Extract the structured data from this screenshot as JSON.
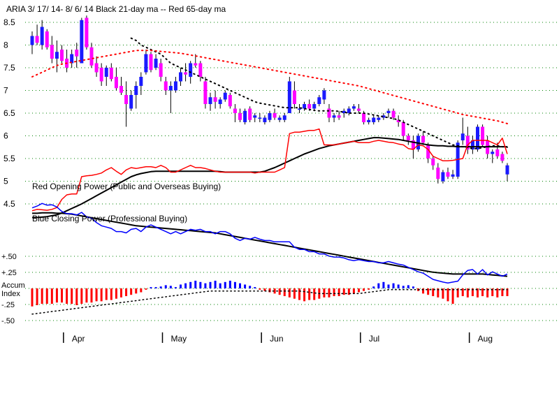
{
  "chart_data": {
    "type": "candlestick",
    "title": "ARIA   3/ 17/ 14-  8/ 6/ 14    Black 21-day ma  --  Red 65-day ma",
    "colors": {
      "up": "#1a1aff",
      "down": "#ff00ff",
      "ma21": "#000000",
      "ma65": "#ff0000",
      "opening_power": "#ff0000",
      "closing_power": "#0000ff",
      "accum_pos": "#0000ff",
      "accum_neg": "#ff0000",
      "grid": "#008000"
    },
    "price_axis": {
      "ticks": [
        "8.5",
        "8",
        "7.5",
        "7",
        "6.5",
        "6",
        "5.5",
        "5",
        "4.5"
      ],
      "min": 4.5,
      "max": 8.5,
      "grid": true
    },
    "month_labels": [
      "Apr",
      "May",
      "Jun",
      "Jul",
      "Aug"
    ],
    "month_start_index": [
      10,
      30,
      50,
      70,
      92
    ],
    "annotations": [
      "Red Opening Power (Public and Overseas Buying)",
      "Blue Closing Power (Professional Buying)"
    ],
    "accum": {
      "label_line1": "Accum",
      "label_line2": "Index",
      "ticks": [
        "+.50",
        "+.25",
        "-.25",
        "-.50"
      ]
    },
    "ohlc": [
      [
        8.0,
        8.3,
        7.8,
        8.2
      ],
      [
        8.2,
        8.45,
        8.0,
        8.05
      ],
      [
        8.0,
        8.55,
        7.9,
        8.4
      ],
      [
        8.3,
        8.35,
        7.9,
        7.95
      ],
      [
        8.0,
        8.2,
        7.6,
        7.7
      ],
      [
        7.7,
        8.1,
        7.4,
        7.85
      ],
      [
        7.9,
        8.0,
        7.6,
        7.65
      ],
      [
        7.7,
        7.9,
        7.4,
        7.5
      ],
      [
        7.6,
        7.9,
        7.5,
        7.8
      ],
      [
        7.9,
        8.05,
        7.5,
        7.75
      ],
      [
        7.6,
        8.6,
        7.6,
        8.55
      ],
      [
        8.6,
        8.65,
        7.9,
        7.95
      ],
      [
        7.95,
        8.05,
        7.5,
        7.55
      ],
      [
        7.6,
        7.75,
        7.3,
        7.4
      ],
      [
        7.5,
        7.6,
        7.1,
        7.2
      ],
      [
        7.3,
        7.55,
        7.1,
        7.5
      ],
      [
        7.5,
        7.6,
        7.2,
        7.25
      ],
      [
        7.3,
        7.5,
        7.0,
        7.05
      ],
      [
        7.1,
        7.3,
        6.9,
        6.95
      ],
      [
        6.9,
        7.2,
        6.2,
        6.7
      ],
      [
        6.6,
        7.0,
        6.55,
        6.9
      ],
      [
        6.9,
        7.2,
        6.6,
        7.1
      ],
      [
        7.1,
        7.4,
        6.9,
        7.3
      ],
      [
        7.4,
        7.9,
        7.35,
        7.8
      ],
      [
        7.8,
        7.85,
        7.4,
        7.45
      ],
      [
        7.5,
        7.8,
        7.45,
        7.7
      ],
      [
        7.6,
        7.7,
        7.2,
        7.3
      ],
      [
        7.2,
        7.3,
        6.9,
        7.0
      ],
      [
        7.0,
        7.2,
        6.5,
        7.1
      ],
      [
        7.0,
        7.3,
        6.95,
        7.2
      ],
      [
        7.2,
        7.5,
        7.1,
        7.4
      ],
      [
        7.4,
        7.6,
        7.2,
        7.35
      ],
      [
        7.3,
        7.65,
        7.15,
        7.6
      ],
      [
        7.6,
        7.8,
        7.5,
        7.55
      ],
      [
        7.6,
        7.65,
        7.2,
        7.3
      ],
      [
        7.2,
        7.3,
        6.6,
        6.7
      ],
      [
        6.7,
        6.95,
        6.55,
        6.85
      ],
      [
        6.85,
        7.0,
        6.6,
        6.75
      ],
      [
        6.7,
        6.85,
        6.6,
        6.8
      ],
      [
        6.8,
        7.0,
        6.75,
        6.95
      ],
      [
        6.9,
        6.95,
        6.6,
        6.65
      ],
      [
        6.6,
        6.7,
        6.3,
        6.5
      ],
      [
        6.5,
        6.6,
        6.3,
        6.35
      ],
      [
        6.3,
        6.6,
        6.25,
        6.55
      ],
      [
        6.6,
        6.65,
        6.3,
        6.35
      ],
      [
        6.4,
        6.5,
        6.3,
        6.45
      ],
      [
        6.4,
        6.5,
        6.3,
        6.4
      ],
      [
        6.3,
        6.45,
        6.25,
        6.4
      ],
      [
        6.35,
        6.55,
        6.3,
        6.5
      ],
      [
        6.5,
        6.6,
        6.35,
        6.4
      ],
      [
        6.35,
        6.45,
        6.3,
        6.4
      ],
      [
        6.35,
        6.5,
        6.3,
        6.45
      ],
      [
        6.5,
        7.3,
        6.5,
        7.2
      ],
      [
        7.0,
        7.2,
        6.6,
        6.7
      ],
      [
        6.6,
        6.7,
        6.5,
        6.6
      ],
      [
        6.6,
        6.75,
        6.55,
        6.7
      ],
      [
        6.7,
        6.8,
        6.55,
        6.6
      ],
      [
        6.6,
        6.75,
        6.55,
        6.7
      ],
      [
        6.7,
        6.9,
        6.65,
        6.85
      ],
      [
        6.8,
        7.05,
        6.7,
        7.0
      ],
      [
        6.6,
        6.7,
        6.3,
        6.4
      ],
      [
        6.4,
        6.5,
        6.3,
        6.45
      ],
      [
        6.45,
        6.55,
        6.35,
        6.4
      ],
      [
        6.5,
        6.6,
        6.4,
        6.55
      ],
      [
        6.5,
        6.65,
        6.45,
        6.6
      ],
      [
        6.6,
        6.7,
        6.55,
        6.65
      ],
      [
        6.6,
        6.7,
        6.5,
        6.55
      ],
      [
        6.5,
        6.55,
        6.25,
        6.3
      ],
      [
        6.3,
        6.4,
        6.25,
        6.35
      ],
      [
        6.3,
        6.45,
        6.25,
        6.4
      ],
      [
        6.35,
        6.45,
        6.3,
        6.4
      ],
      [
        6.4,
        6.5,
        6.35,
        6.45
      ],
      [
        6.5,
        6.6,
        6.4,
        6.55
      ],
      [
        6.55,
        6.6,
        6.35,
        6.4
      ],
      [
        6.35,
        6.45,
        6.2,
        6.3
      ],
      [
        6.3,
        6.35,
        5.9,
        6.0
      ],
      [
        6.0,
        6.05,
        5.8,
        5.9
      ],
      [
        5.9,
        6.0,
        5.5,
        5.7
      ],
      [
        5.7,
        6.05,
        5.65,
        6.0
      ],
      [
        6.0,
        6.1,
        5.8,
        5.85
      ],
      [
        5.8,
        5.85,
        5.4,
        5.5
      ],
      [
        5.5,
        5.55,
        5.25,
        5.35
      ],
      [
        5.3,
        5.4,
        4.95,
        5.05
      ],
      [
        5.0,
        5.25,
        4.95,
        5.2
      ],
      [
        5.2,
        5.3,
        5.05,
        5.1
      ],
      [
        5.1,
        5.25,
        5.05,
        5.15
      ],
      [
        5.1,
        5.9,
        5.05,
        5.85
      ],
      [
        5.9,
        6.4,
        5.8,
        6.05
      ],
      [
        6.0,
        6.2,
        5.6,
        5.7
      ],
      [
        5.7,
        6.0,
        5.6,
        5.9
      ],
      [
        5.7,
        6.25,
        5.65,
        6.2
      ],
      [
        6.2,
        6.25,
        5.75,
        5.8
      ],
      [
        5.9,
        6.0,
        5.5,
        5.6
      ],
      [
        5.6,
        5.7,
        5.4,
        5.65
      ],
      [
        5.7,
        5.85,
        5.5,
        5.55
      ],
      [
        5.6,
        5.65,
        5.4,
        5.45
      ],
      [
        5.15,
        5.4,
        5.0,
        5.35
      ]
    ],
    "ma21": [
      null,
      null,
      null,
      null,
      null,
      null,
      null,
      null,
      null,
      null,
      null,
      null,
      null,
      null,
      null,
      null,
      null,
      null,
      null,
      null,
      8.15,
      8.1,
      8.0,
      7.95,
      7.9,
      7.85,
      7.8,
      7.7,
      7.6,
      7.55,
      7.5,
      7.45,
      7.4,
      7.35,
      7.3,
      7.25,
      7.2,
      7.15,
      7.1,
      7.05,
      7.0,
      6.95,
      6.9,
      6.85,
      6.8,
      6.75,
      6.72,
      6.7,
      6.68,
      6.66,
      6.64,
      6.62,
      6.62,
      6.62,
      6.62,
      6.6,
      6.58,
      6.56,
      6.55,
      6.55,
      6.55,
      6.55,
      6.54,
      6.52,
      6.5,
      6.5,
      6.5,
      6.5,
      6.48,
      6.46,
      6.44,
      6.42,
      6.4,
      6.38,
      6.35,
      6.3,
      6.25,
      6.2,
      6.15,
      6.1,
      6.05,
      6.0,
      5.95,
      5.9,
      5.85,
      5.8,
      5.78,
      5.76,
      5.74,
      5.72,
      5.72,
      5.74,
      5.76,
      5.78,
      5.78,
      5.76,
      5.75
    ],
    "ma65": [
      7.3,
      7.35,
      7.4,
      7.45,
      7.5,
      7.55,
      7.58,
      7.6,
      7.62,
      7.64,
      7.66,
      7.68,
      7.7,
      7.72,
      7.74,
      7.76,
      7.78,
      7.8,
      7.82,
      7.84,
      7.86,
      7.88,
      7.88,
      7.88,
      7.88,
      7.87,
      7.86,
      7.85,
      7.84,
      7.83,
      7.82,
      7.8,
      7.78,
      7.76,
      7.74,
      7.72,
      7.7,
      7.68,
      7.66,
      7.64,
      7.62,
      7.6,
      7.58,
      7.56,
      7.54,
      7.52,
      7.5,
      7.48,
      7.46,
      7.44,
      7.42,
      7.4,
      7.38,
      7.36,
      7.34,
      7.32,
      7.3,
      7.28,
      7.26,
      7.24,
      7.22,
      7.2,
      7.18,
      7.16,
      7.14,
      7.12,
      7.1,
      7.07,
      7.04,
      7.01,
      6.98,
      6.95,
      6.92,
      6.89,
      6.86,
      6.83,
      6.8,
      6.77,
      6.74,
      6.71,
      6.68,
      6.65,
      6.62,
      6.59,
      6.56,
      6.53,
      6.5,
      6.47,
      6.45,
      6.43,
      6.41,
      6.39,
      6.37,
      6.35,
      6.33,
      6.3,
      6.27
    ],
    "opening_power": [
      4.35,
      4.38,
      4.37,
      4.36,
      4.38,
      4.42,
      4.6,
      4.7,
      4.72,
      4.72,
      5.1,
      5.12,
      5.13,
      5.15,
      5.18,
      5.25,
      5.3,
      5.22,
      5.15,
      5.25,
      5.3,
      5.28,
      5.3,
      5.32,
      5.32,
      5.3,
      5.35,
      5.3,
      5.2,
      5.2,
      5.25,
      5.3,
      5.35,
      5.3,
      5.3,
      5.28,
      5.25,
      5.22,
      5.2,
      5.2,
      5.2,
      5.2,
      5.2,
      5.2,
      5.2,
      5.18,
      5.2,
      5.2,
      5.2,
      5.2,
      5.25,
      5.3,
      6.05,
      6.08,
      6.08,
      6.1,
      6.12,
      6.12,
      6.15,
      5.8,
      5.8,
      5.8,
      5.82,
      5.84,
      5.86,
      5.88,
      5.85,
      5.85,
      5.85,
      5.88,
      5.9,
      5.88,
      5.86,
      5.85,
      5.82,
      5.8,
      5.72,
      5.7,
      5.8,
      5.78,
      5.7,
      5.55,
      5.5,
      5.45,
      5.45,
      5.46,
      5.48,
      5.5,
      5.8,
      5.9,
      5.9,
      5.9,
      5.9,
      5.85,
      5.8,
      5.95,
      5.6
    ],
    "opening_power_ma": [
      4.2,
      4.2,
      4.21,
      4.22,
      4.24,
      4.26,
      4.3,
      4.35,
      4.4,
      4.45,
      4.5,
      4.56,
      4.62,
      4.68,
      4.74,
      4.8,
      4.86,
      4.92,
      4.98,
      5.04,
      5.1,
      5.14,
      5.17,
      5.19,
      5.21,
      5.22,
      5.22,
      5.22,
      5.22,
      5.22,
      5.22,
      5.22,
      5.22,
      5.22,
      5.22,
      5.22,
      5.22,
      5.22,
      5.21,
      5.2,
      5.2,
      5.2,
      5.2,
      5.2,
      5.2,
      5.2,
      5.2,
      5.22,
      5.26,
      5.3,
      5.35,
      5.4,
      5.45,
      5.5,
      5.55,
      5.6,
      5.64,
      5.68,
      5.72,
      5.75,
      5.78,
      5.8,
      5.82,
      5.84,
      5.86,
      5.88,
      5.9,
      5.92,
      5.94,
      5.96,
      5.96,
      5.95,
      5.94,
      5.93,
      5.92,
      5.9,
      5.88,
      5.86,
      5.84,
      5.82,
      5.8,
      5.79,
      5.78,
      5.78,
      5.77,
      5.77,
      5.76,
      5.76,
      5.76,
      5.76,
      5.76,
      5.76,
      5.76,
      5.76,
      5.76,
      5.76,
      5.76
    ],
    "closing_power": [
      4.38,
      4.42,
      4.48,
      4.44,
      4.45,
      4.4,
      4.3,
      4.25,
      4.25,
      4.22,
      4.28,
      4.18,
      4.15,
      4.05,
      3.98,
      3.95,
      3.92,
      3.85,
      3.85,
      3.82,
      3.9,
      3.92,
      3.85,
      3.95,
      4.0,
      3.95,
      3.9,
      3.85,
      3.8,
      3.85,
      3.8,
      3.85,
      3.9,
      3.88,
      3.9,
      3.85,
      3.85,
      3.8,
      3.85,
      3.85,
      3.8,
      3.7,
      3.65,
      3.7,
      3.68,
      3.72,
      3.68,
      3.65,
      3.65,
      3.62,
      3.62,
      3.62,
      3.62,
      3.5,
      3.45,
      3.45,
      3.4,
      3.4,
      3.35,
      3.35,
      3.3,
      3.28,
      3.28,
      3.26,
      3.22,
      3.2,
      3.22,
      3.2,
      3.18,
      3.18,
      3.15,
      3.15,
      3.18,
      3.15,
      3.12,
      3.1,
      3.05,
      3.0,
      2.95,
      2.92,
      2.85,
      2.78,
      2.75,
      2.72,
      2.7,
      2.72,
      2.74,
      2.88,
      2.98,
      3.0,
      2.9,
      3.0,
      2.88,
      2.95,
      2.9,
      2.85,
      2.9
    ],
    "closing_power_ma": [
      4.26,
      4.26,
      4.27,
      4.27,
      4.27,
      4.26,
      4.26,
      4.25,
      4.24,
      4.22,
      4.2,
      4.18,
      4.16,
      4.14,
      4.12,
      4.1,
      4.08,
      4.06,
      4.04,
      4.02,
      4.0,
      3.98,
      3.97,
      3.96,
      3.95,
      3.94,
      3.93,
      3.92,
      3.91,
      3.9,
      3.89,
      3.88,
      3.87,
      3.86,
      3.85,
      3.84,
      3.83,
      3.82,
      3.8,
      3.78,
      3.76,
      3.74,
      3.72,
      3.7,
      3.68,
      3.66,
      3.64,
      3.62,
      3.6,
      3.58,
      3.56,
      3.54,
      3.52,
      3.5,
      3.48,
      3.46,
      3.44,
      3.42,
      3.4,
      3.38,
      3.36,
      3.34,
      3.32,
      3.3,
      3.28,
      3.26,
      3.24,
      3.22,
      3.2,
      3.18,
      3.16,
      3.14,
      3.12,
      3.1,
      3.08,
      3.06,
      3.04,
      3.02,
      3.0,
      2.98,
      2.96,
      2.94,
      2.93,
      2.92,
      2.91,
      2.9,
      2.9,
      2.9,
      2.9,
      2.9,
      2.9,
      2.9,
      2.89,
      2.88,
      2.87,
      2.86,
      2.85
    ],
    "accum_index": [
      -0.28,
      -0.26,
      -0.24,
      -0.24,
      -0.24,
      -0.22,
      -0.22,
      -0.24,
      -0.24,
      -0.26,
      -0.24,
      -0.22,
      -0.22,
      -0.2,
      -0.2,
      -0.18,
      -0.18,
      -0.16,
      -0.14,
      -0.12,
      -0.1,
      -0.08,
      -0.06,
      -0.02,
      0.02,
      0.02,
      0.03,
      0.05,
      0.04,
      0.02,
      0.06,
      0.08,
      0.1,
      0.12,
      0.1,
      0.08,
      0.1,
      0.12,
      0.08,
      0.1,
      0.12,
      0.1,
      0.08,
      0.06,
      0.04,
      0.02,
      -0.02,
      -0.04,
      -0.06,
      -0.08,
      -0.1,
      -0.12,
      -0.14,
      -0.16,
      -0.18,
      -0.2,
      -0.18,
      -0.18,
      -0.16,
      -0.14,
      -0.14,
      -0.12,
      -0.12,
      -0.1,
      -0.1,
      -0.08,
      -0.06,
      -0.04,
      -0.02,
      0.03,
      0.08,
      0.1,
      0.06,
      0.08,
      0.06,
      0.04,
      0.05,
      0.03,
      -0.04,
      -0.08,
      -0.1,
      -0.12,
      -0.14,
      -0.16,
      -0.2,
      -0.24,
      -0.14,
      -0.12,
      -0.14,
      -0.12,
      -0.14,
      -0.12,
      -0.14,
      -0.12,
      -0.14,
      -0.12,
      -0.12
    ],
    "accum_index_ma": [
      -0.4,
      -0.39,
      -0.38,
      -0.37,
      -0.36,
      -0.35,
      -0.34,
      -0.33,
      -0.32,
      -0.31,
      -0.3,
      -0.29,
      -0.28,
      -0.27,
      -0.26,
      -0.25,
      -0.24,
      -0.23,
      -0.22,
      -0.21,
      -0.2,
      -0.19,
      -0.18,
      -0.17,
      -0.16,
      -0.15,
      -0.14,
      -0.13,
      -0.12,
      -0.11,
      -0.1,
      -0.09,
      -0.08,
      -0.07,
      -0.06,
      -0.05,
      -0.04,
      -0.04,
      -0.04,
      -0.04,
      -0.04,
      -0.04,
      -0.04,
      -0.04,
      -0.04,
      -0.04,
      -0.04,
      -0.04,
      -0.04,
      -0.04,
      -0.04,
      -0.04,
      -0.04,
      -0.04,
      -0.04,
      -0.05,
      -0.06,
      -0.07,
      -0.08,
      -0.08,
      -0.08,
      -0.08,
      -0.08,
      -0.08,
      -0.08,
      -0.08,
      -0.08,
      -0.07,
      -0.06,
      -0.05,
      -0.04,
      -0.03,
      -0.02,
      -0.02,
      -0.02,
      -0.02,
      -0.02,
      -0.02,
      -0.02,
      -0.02,
      -0.02,
      -0.02,
      -0.02,
      -0.02,
      -0.02,
      -0.02,
      -0.02,
      -0.02,
      -0.02,
      -0.02,
      -0.02,
      -0.02,
      -0.02,
      -0.02,
      -0.02,
      -0.02,
      -0.02
    ]
  }
}
